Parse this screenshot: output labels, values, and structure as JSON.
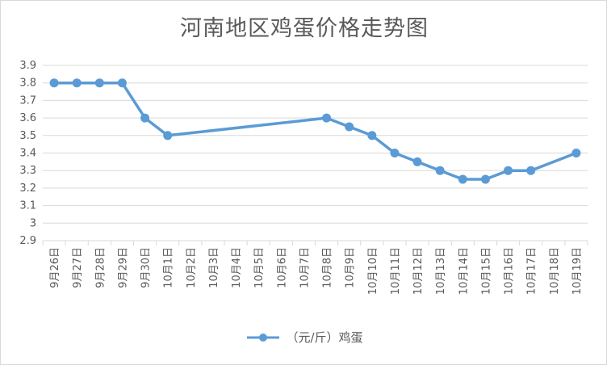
{
  "chart_data": {
    "type": "line",
    "title": "河南地区鸡蛋价格走势图",
    "categories": [
      "9月26日",
      "9月27日",
      "9月28日",
      "9月29日",
      "9月30日",
      "10月1日",
      "10月2日",
      "10月3日",
      "10月4日",
      "10月5日",
      "10月6日",
      "10月7日",
      "10月8日",
      "10月9日",
      "10月10日",
      "10月11日",
      "10月12日",
      "10月13日",
      "10月14日",
      "10月15日",
      "10月16日",
      "10月17日",
      "10月18日",
      "10月19日"
    ],
    "series": [
      {
        "name": "（元/斤）鸡蛋",
        "color": "#5b9bd5",
        "values": [
          3.8,
          3.8,
          3.8,
          3.8,
          3.6,
          3.5,
          null,
          null,
          null,
          null,
          null,
          null,
          3.6,
          3.55,
          3.5,
          3.4,
          3.35,
          3.3,
          3.25,
          3.25,
          3.3,
          3.3,
          null,
          3.4
        ]
      }
    ],
    "y_ticks": [
      "2.9",
      "3",
      "3.1",
      "3.2",
      "3.3",
      "3.4",
      "3.5",
      "3.6",
      "3.7",
      "3.8",
      "3.9"
    ],
    "ylim": [
      2.9,
      3.9
    ],
    "grid": true,
    "legend_position": "bottom"
  }
}
